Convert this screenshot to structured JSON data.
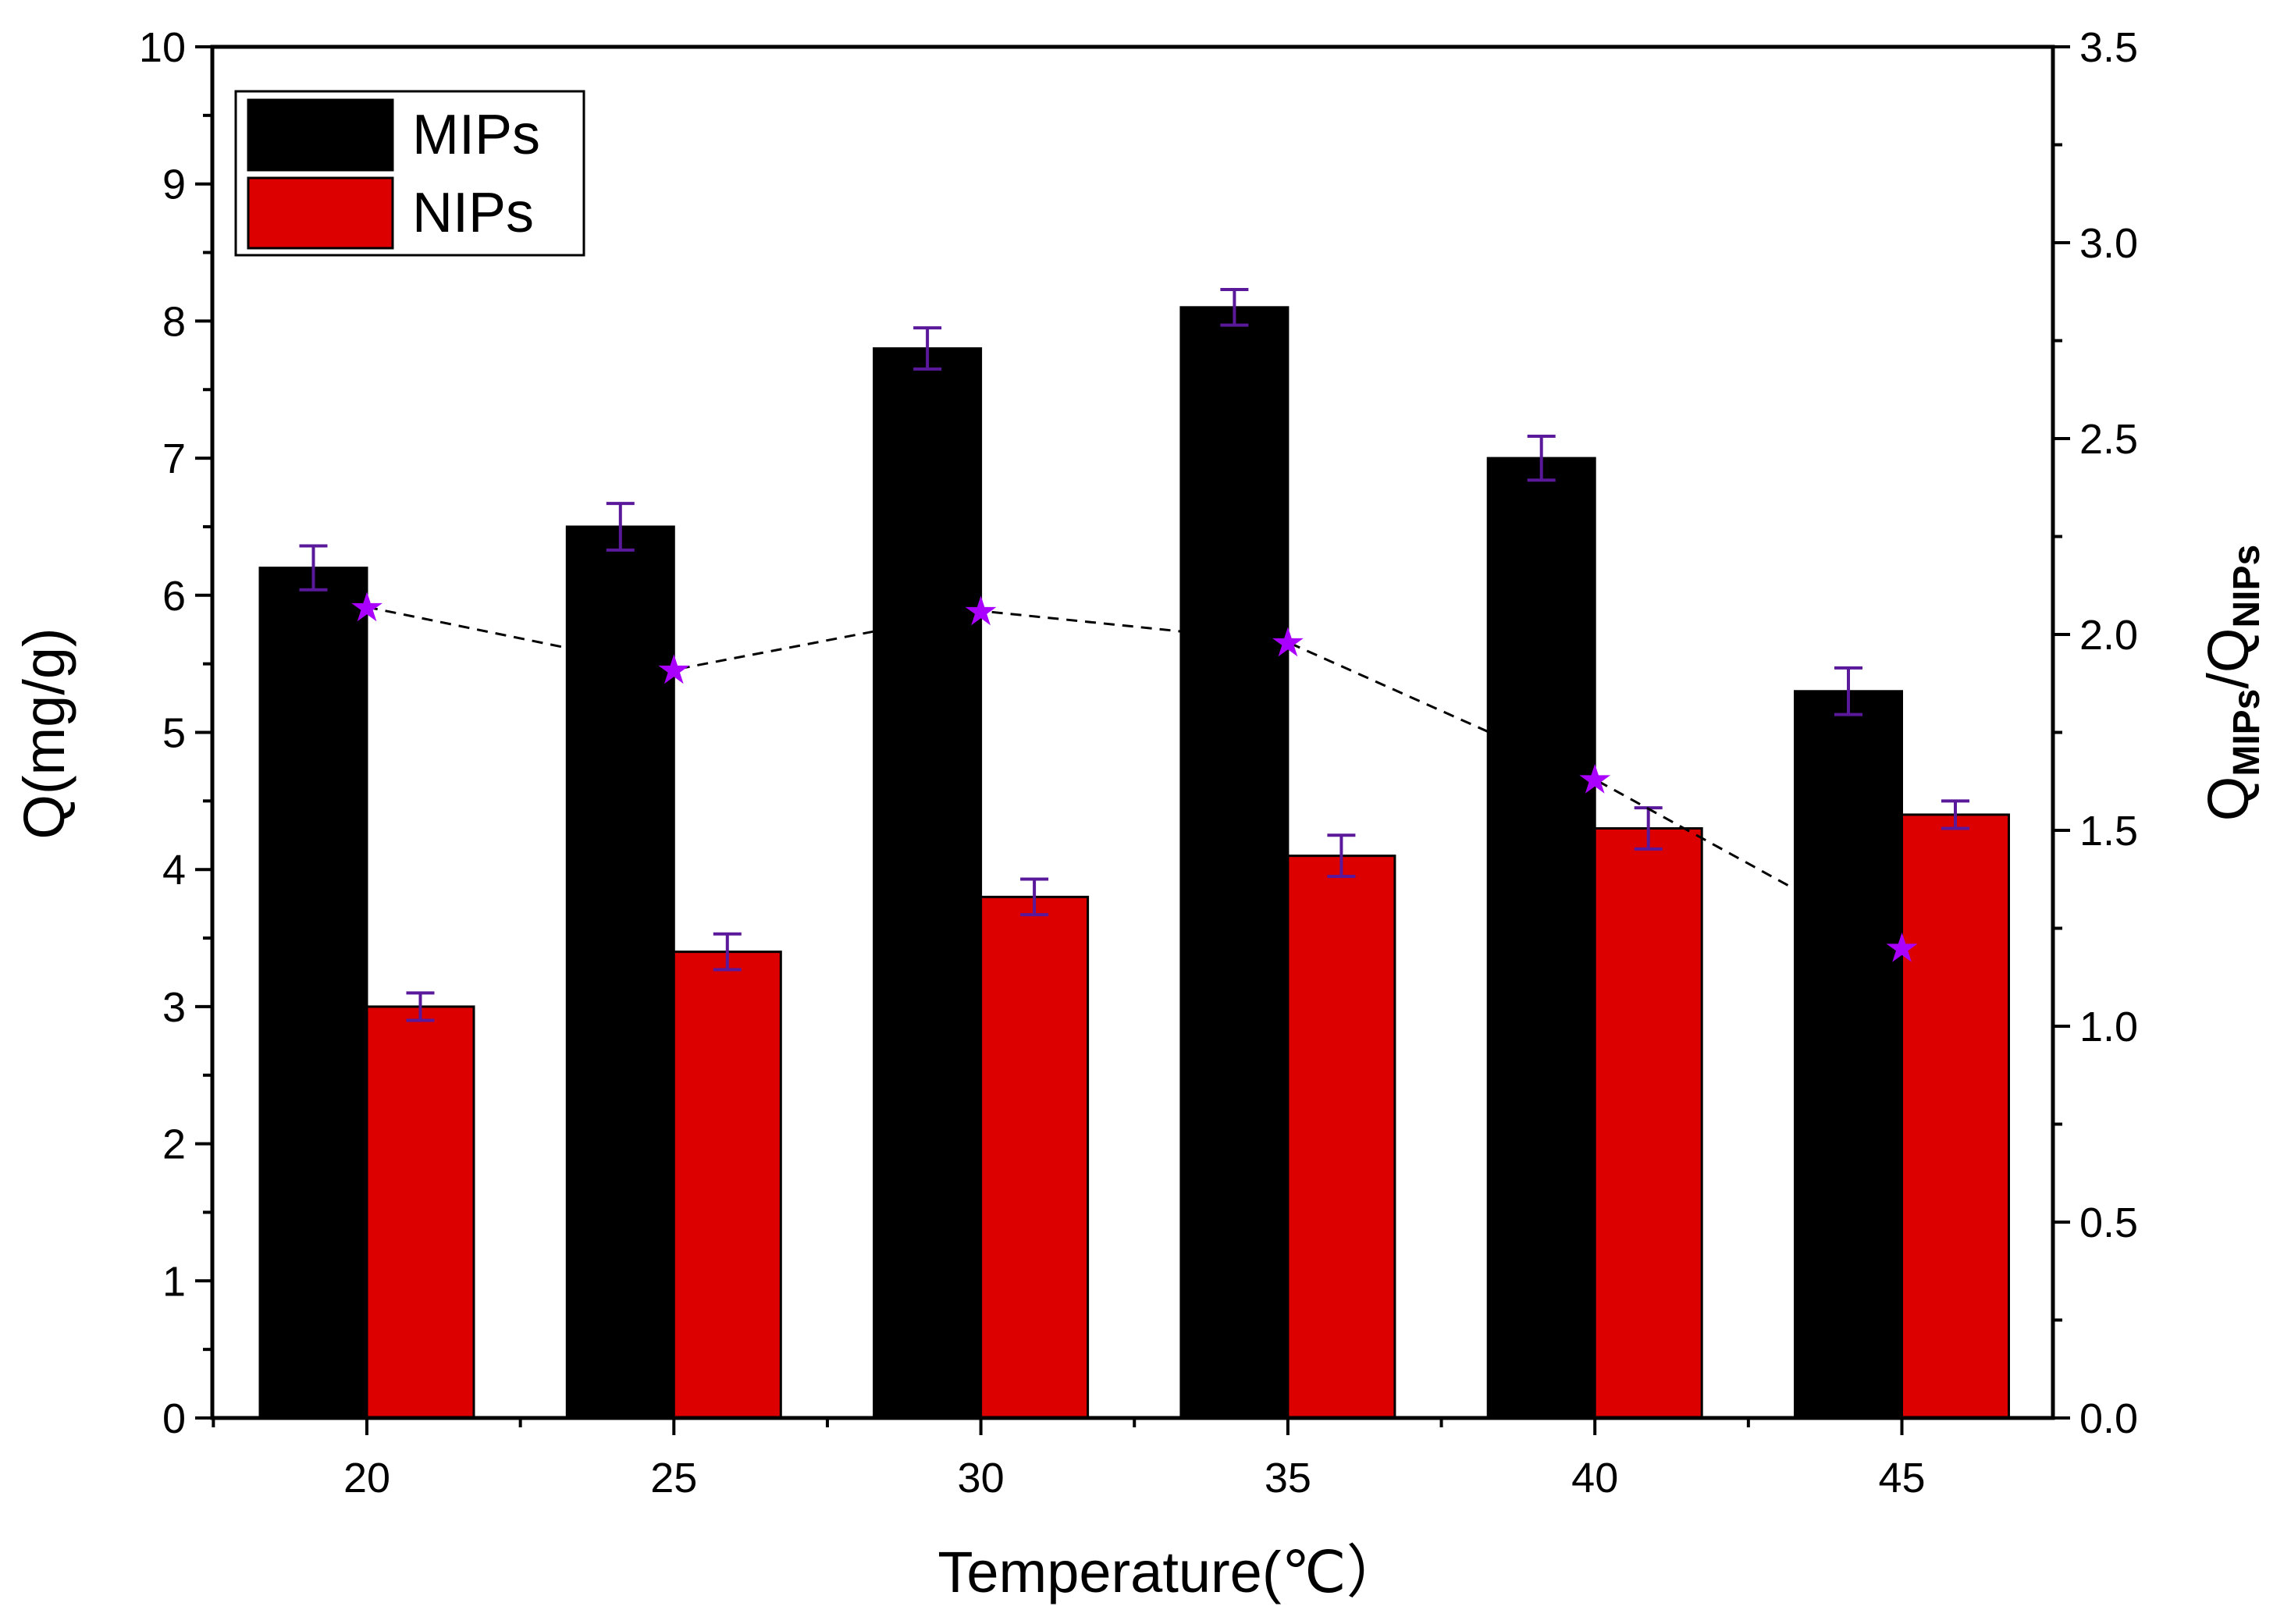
{
  "chart_data": {
    "type": "bar",
    "title": "",
    "xlabel": "Temperature(℃）",
    "ylabel": "Q(mg/g)",
    "y2label": {
      "main": "Q",
      "sub1": "MIPs",
      "sep": "/Q",
      "sub2": "NIPs"
    },
    "categories": [
      "20",
      "25",
      "30",
      "35",
      "40",
      "45"
    ],
    "ylim": [
      0,
      10
    ],
    "y2lim": [
      0,
      3.5
    ],
    "yticks": [
      "0",
      "1",
      "2",
      "3",
      "4",
      "5",
      "6",
      "7",
      "8",
      "9",
      "10"
    ],
    "y2ticks": [
      "0.0",
      "0.5",
      "1.0",
      "1.5",
      "2.0",
      "2.5",
      "3.0",
      "3.5"
    ],
    "series": [
      {
        "name": "MIPs",
        "color": "#000000",
        "values": [
          6.2,
          6.5,
          7.8,
          8.1,
          7.0,
          5.3
        ],
        "errors": [
          0.16,
          0.17,
          0.15,
          0.13,
          0.16,
          0.17
        ]
      },
      {
        "name": "NIPs",
        "color": "#dd0000",
        "values": [
          3.0,
          3.4,
          3.8,
          4.1,
          4.3,
          4.4
        ],
        "errors": [
          0.1,
          0.13,
          0.13,
          0.15,
          0.15,
          0.1
        ]
      }
    ],
    "ratio_series": {
      "name": "QMIPs/QNIPs",
      "axis": "right",
      "color": "#aa00ff",
      "marker": "star",
      "line_style": "dashed",
      "values": [
        2.07,
        1.91,
        2.06,
        1.98,
        1.63,
        1.2
      ]
    },
    "errorbar_color": "#5a189a",
    "legend": {
      "position": "top-left"
    },
    "grid": false
  }
}
